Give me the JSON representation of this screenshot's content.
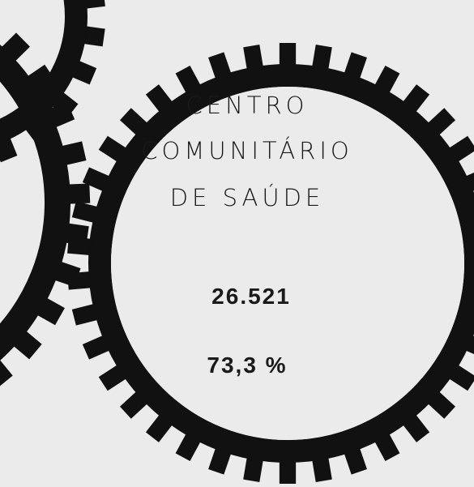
{
  "label": {
    "lines": [
      "CENTRO",
      "COMUNITÁRIO",
      "DE SAÚDE"
    ]
  },
  "count": "26.521",
  "share": "73,3 %"
}
